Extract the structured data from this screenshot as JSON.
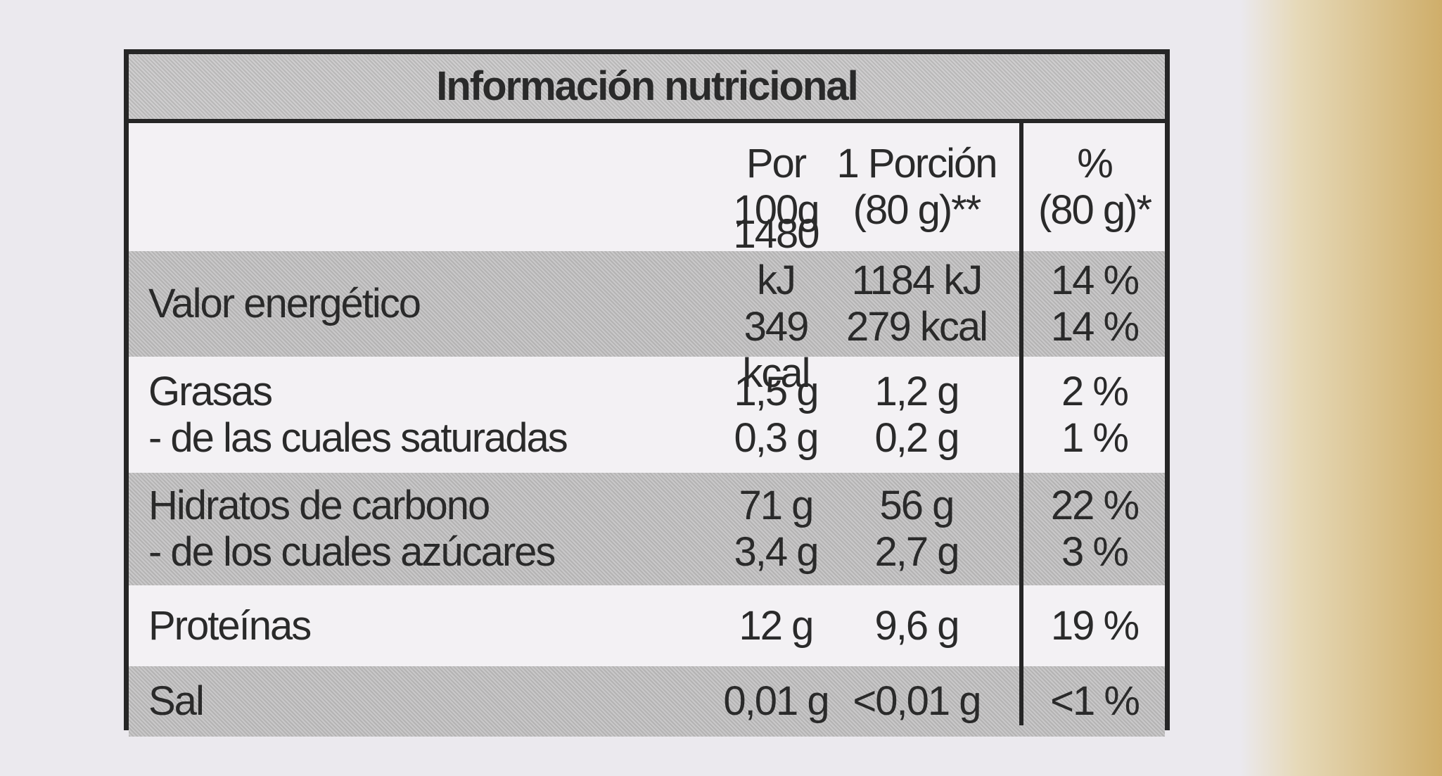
{
  "table": {
    "title": "Información nutricional",
    "header": [
      [
        "Por",
        "100g"
      ],
      [
        "1 Porción",
        "(80 g)**"
      ],
      [
        "%",
        "(80 g)*"
      ]
    ],
    "rows": [
      {
        "label": [
          "Valor energético"
        ],
        "per100": [
          "1480 kJ",
          "349 kcal"
        ],
        "portion": [
          "1184 kJ",
          "279 kcal"
        ],
        "pct": [
          "14 %",
          "14 %"
        ]
      },
      {
        "label": [
          "Grasas",
          "- de las cuales saturadas"
        ],
        "per100": [
          "1,5 g",
          "0,3 g"
        ],
        "portion": [
          "1,2 g",
          "0,2 g"
        ],
        "pct": [
          "2 %",
          "1 %"
        ]
      },
      {
        "label": [
          "Hidratos de carbono",
          "- de los cuales azúcares"
        ],
        "per100": [
          "71 g",
          "3,4 g"
        ],
        "portion": [
          "56 g",
          "2,7 g"
        ],
        "pct": [
          "22 %",
          "3 %"
        ]
      },
      {
        "label": [
          "Proteínas"
        ],
        "per100": [
          "12 g"
        ],
        "portion": [
          "9,6 g"
        ],
        "pct": [
          "19 %"
        ]
      },
      {
        "label": [
          "Sal"
        ],
        "per100": [
          "0,01 g"
        ],
        "portion": [
          "<0,01 g"
        ],
        "pct": [
          "<1 %"
        ]
      }
    ]
  }
}
